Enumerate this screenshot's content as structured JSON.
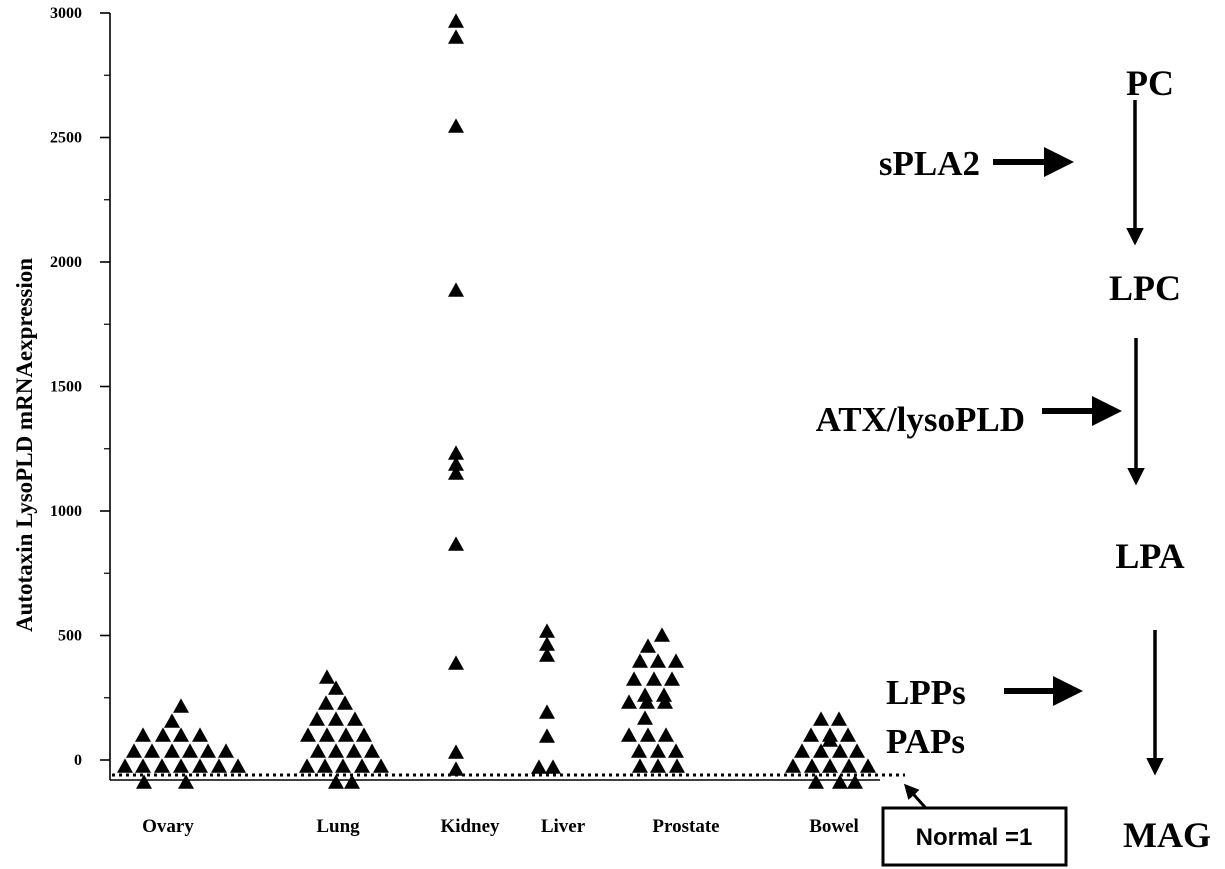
{
  "chart_data": {
    "type": "scatter",
    "ylabel": "Autotaxin LysoPLD mRNAexpression",
    "ylim": [
      0,
      3000
    ],
    "yticks": [
      "0",
      "500",
      "1000",
      "1500",
      "2000",
      "2500",
      "3000"
    ],
    "categories": [
      "Ovary",
      "Lung",
      "Kidney",
      "Liver",
      "Prostate",
      "Bowel"
    ],
    "baseline": {
      "value": 1,
      "label": "Normal =1"
    },
    "series": [
      {
        "category": "Ovary",
        "values": [
          1,
          1,
          1,
          1,
          1,
          1,
          1,
          1,
          1,
          1,
          1,
          1,
          1,
          1,
          1,
          1,
          1,
          1,
          1,
          1,
          1,
          1,
          1,
          1,
          1,
          1,
          1,
          1,
          1,
          1,
          1,
          1,
          1,
          1,
          1,
          1,
          1,
          1,
          1,
          1,
          1,
          1,
          1,
          1,
          1,
          1,
          1,
          1,
          1,
          1,
          1,
          1,
          1,
          1,
          1,
          1,
          1,
          1,
          1,
          1,
          1,
          1,
          1,
          1,
          1,
          1,
          1,
          1,
          1,
          1,
          1,
          1,
          1,
          1,
          1,
          1,
          1,
          1,
          1,
          1,
          1,
          1,
          1,
          1,
          1,
          1,
          1,
          1,
          1,
          1,
          1,
          1,
          1,
          1,
          1,
          1,
          1,
          1,
          1,
          1,
          1,
          1,
          1,
          1,
          1,
          1,
          1,
          1,
          1,
          1,
          1,
          1,
          1,
          1,
          1,
          1,
          1,
          1,
          1,
          1,
          1,
          1,
          1,
          1,
          1,
          1,
          1,
          1,
          1,
          1,
          1,
          1,
          1,
          1,
          1,
          1,
          1,
          1,
          1,
          1,
          1,
          1,
          1,
          1,
          1,
          1,
          1,
          1,
          1,
          1,
          1,
          1,
          1,
          1,
          1,
          1,
          1,
          1,
          1,
          1,
          1,
          1,
          1,
          1,
          1,
          1,
          1,
          1,
          1,
          1,
          1,
          1,
          1,
          1,
          1,
          1,
          1,
          1,
          1,
          1,
          1,
          1,
          1,
          1,
          1,
          1,
          1,
          1,
          1,
          1
        ]
      }
    ]
  },
  "pathway": {
    "nodes": [
      "PC",
      "LPC",
      "LPA",
      "MAG"
    ],
    "enzymes": [
      "sPLA2",
      "ATX/lysoPLD",
      "LPPs",
      "PAPs"
    ]
  }
}
